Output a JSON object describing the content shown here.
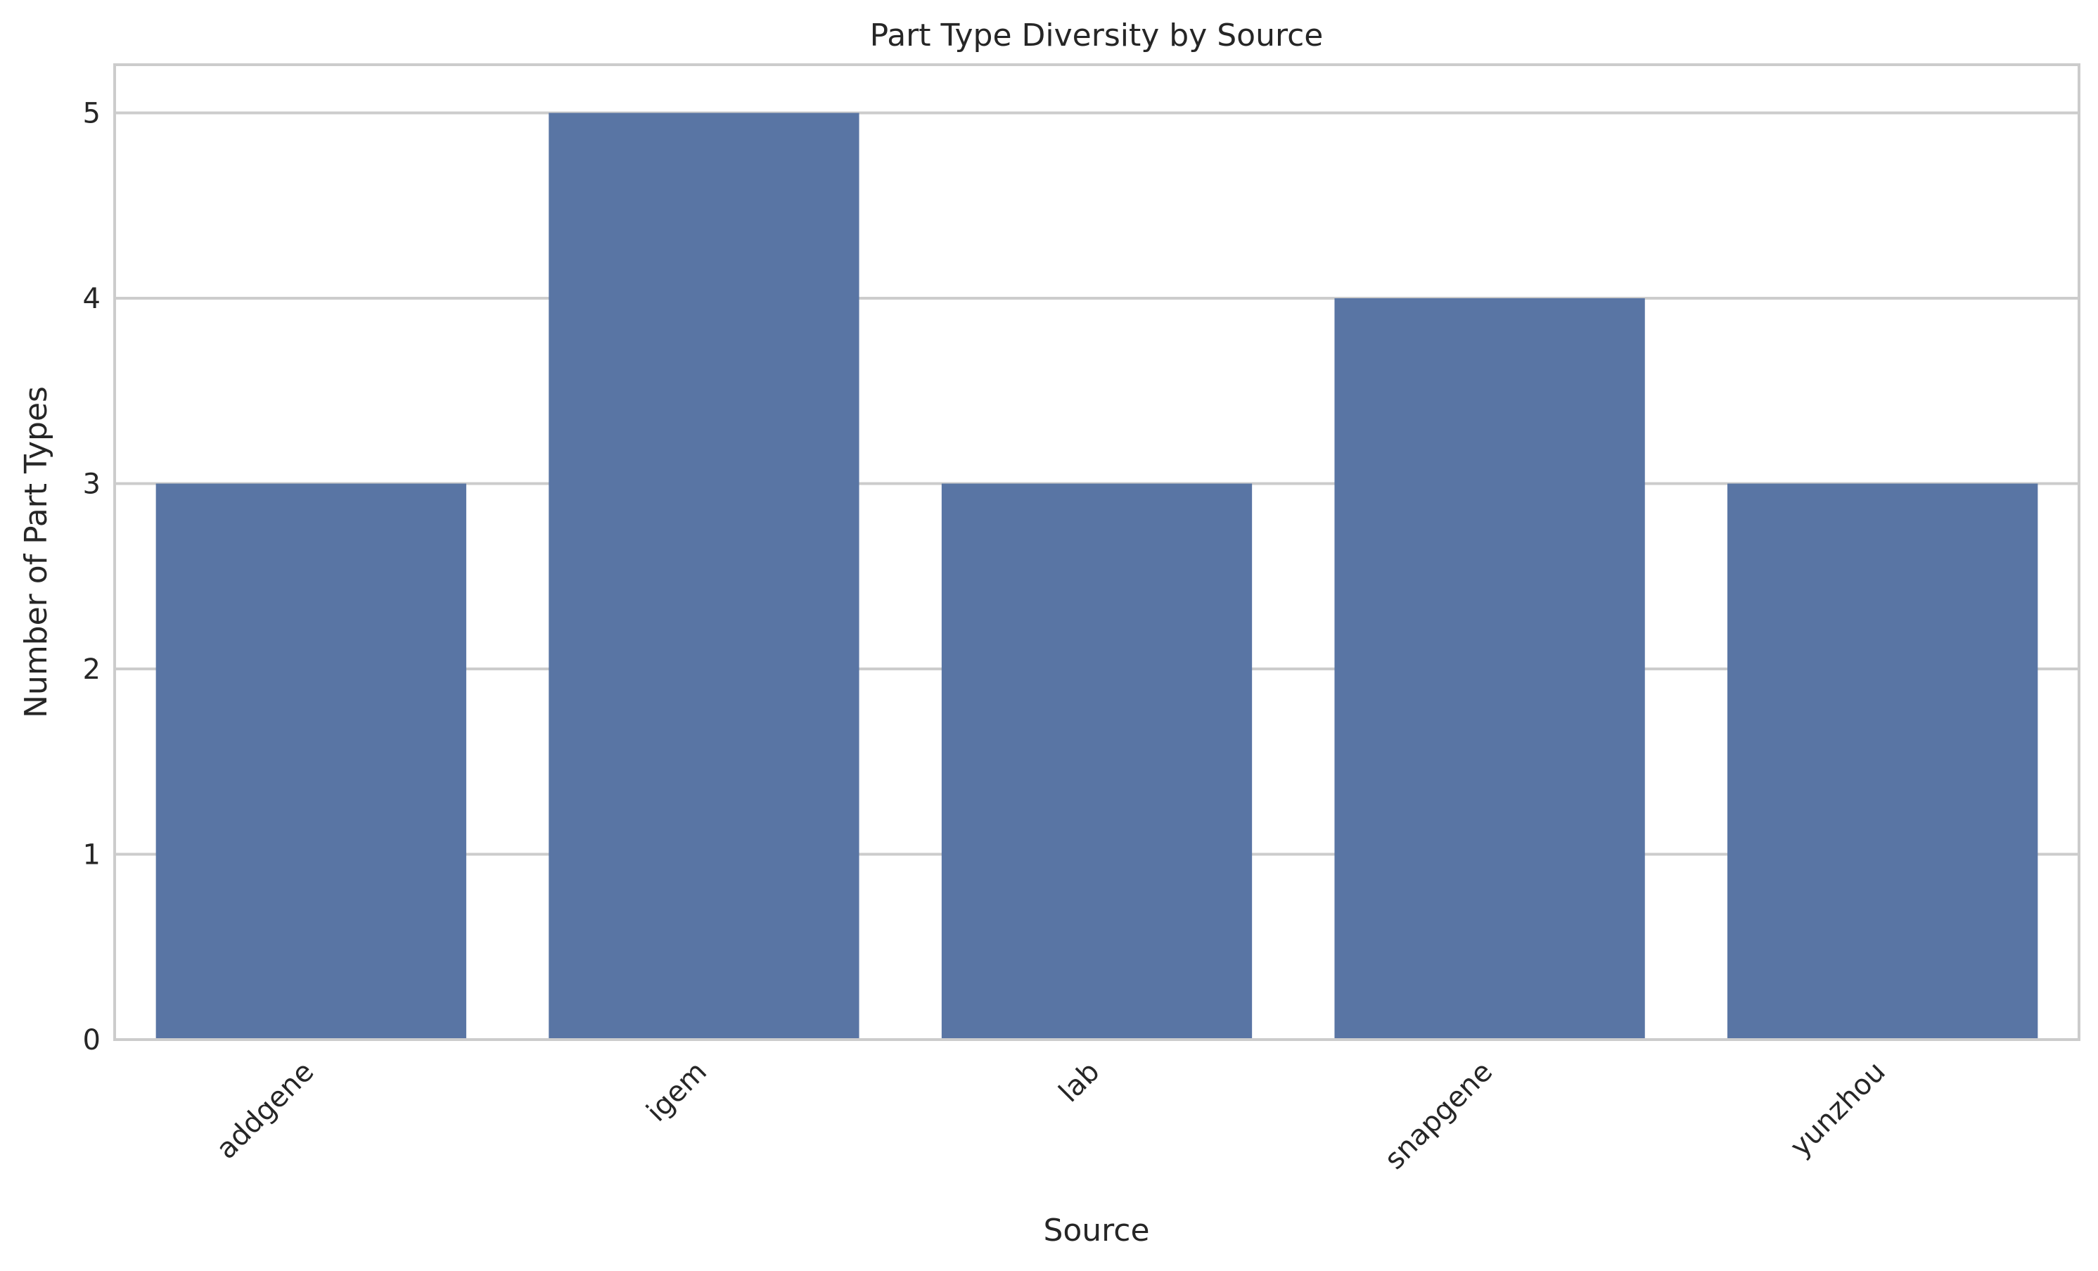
{
  "chart_data": {
    "type": "bar",
    "title": "Part Type Diversity by Source",
    "xlabel": "Source",
    "ylabel": "Number of Part Types",
    "categories": [
      "addgene",
      "igem",
      "lab",
      "snapgene",
      "yunzhou"
    ],
    "values": [
      3,
      5,
      3,
      4,
      3
    ],
    "yticks": [
      "0",
      "1",
      "2",
      "3",
      "4",
      "5"
    ],
    "ylim": [
      0,
      5.26
    ],
    "grid": true,
    "bar_color": "#5975a4",
    "grid_color": "#cccccc",
    "legend": "none"
  }
}
